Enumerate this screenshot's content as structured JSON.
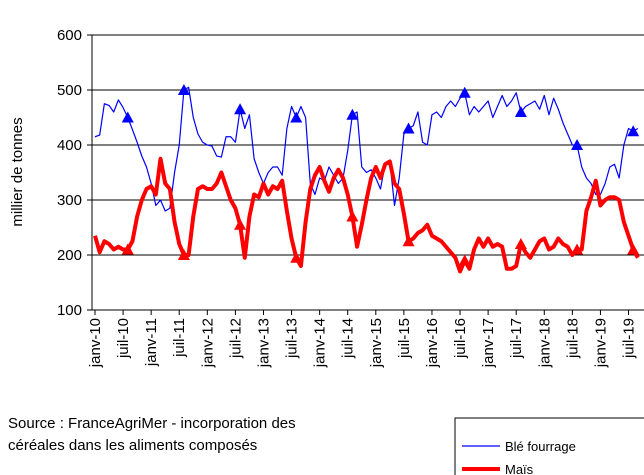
{
  "chart_data": {
    "type": "line",
    "y_label": "millier de tonnes",
    "source": [
      "Source : FranceAgriMer - incorporation des",
      "céréales dans les aliments  composés"
    ],
    "categories": [
      "janv-10",
      null,
      null,
      null,
      null,
      null,
      "juil-10",
      null,
      null,
      null,
      null,
      null,
      "janv-11",
      null,
      null,
      null,
      null,
      null,
      "juil-11",
      null,
      null,
      null,
      null,
      null,
      "janv-12",
      null,
      null,
      null,
      null,
      null,
      "juil-12",
      null,
      null,
      null,
      null,
      null,
      "janv-13",
      null,
      null,
      null,
      null,
      null,
      "juil-13",
      null,
      null,
      null,
      null,
      null,
      "janv-14",
      null,
      null,
      null,
      null,
      null,
      "juil-14",
      null,
      null,
      null,
      null,
      null,
      "janv-15",
      null,
      null,
      null,
      null,
      null,
      "juil-15",
      null,
      null,
      null,
      null,
      null,
      "janv-16",
      null,
      null,
      null,
      null,
      null,
      "juil-16",
      null,
      null,
      null,
      null,
      null,
      "janv-17",
      null,
      null,
      null,
      null,
      null,
      "juil-17",
      null,
      null,
      null,
      null,
      null,
      "janv-18",
      null,
      null,
      null,
      null,
      null,
      "juil-18",
      null,
      null,
      null,
      null,
      null,
      "janv-19",
      null,
      null,
      null,
      null,
      null,
      "juil-19",
      null,
      null
    ],
    "series": [
      {
        "name": "Blé fourrage",
        "color": "#0000ff",
        "width": 1.2,
        "values": [
          415,
          418,
          475,
          472,
          460,
          482,
          468,
          450,
          428,
          405,
          380,
          360,
          330,
          290,
          300,
          280,
          285,
          350,
          400,
          500,
          505,
          450,
          420,
          405,
          400,
          398,
          380,
          378,
          415,
          415,
          405,
          465,
          430,
          455,
          375,
          350,
          330,
          350,
          360,
          360,
          345,
          430,
          470,
          450,
          470,
          450,
          330,
          310,
          340,
          335,
          360,
          345,
          330,
          340,
          390,
          455,
          460,
          360,
          350,
          355,
          340,
          320,
          365,
          370,
          290,
          340,
          420,
          430,
          435,
          460,
          405,
          400,
          455,
          460,
          450,
          470,
          480,
          470,
          485,
          495,
          455,
          470,
          460,
          470,
          480,
          450,
          470,
          490,
          470,
          480,
          495,
          460,
          470,
          475,
          480,
          465,
          490,
          455,
          485,
          465,
          440,
          420,
          400,
          400,
          360,
          340,
          330,
          310,
          310,
          330,
          360,
          365,
          340,
          400,
          430,
          425,
          430
        ]
      },
      {
        "name": "Maïs",
        "color": "#ff0000",
        "width": 4,
        "values": [
          235,
          205,
          225,
          220,
          210,
          215,
          210,
          210,
          225,
          270,
          300,
          320,
          325,
          310,
          375,
          330,
          320,
          260,
          220,
          200,
          200,
          270,
          320,
          325,
          320,
          320,
          330,
          350,
          325,
          300,
          285,
          255,
          195,
          270,
          310,
          305,
          330,
          310,
          325,
          320,
          335,
          280,
          230,
          195,
          180,
          260,
          320,
          345,
          360,
          335,
          315,
          340,
          355,
          340,
          310,
          270,
          215,
          255,
          300,
          340,
          360,
          340,
          365,
          370,
          330,
          320,
          275,
          225,
          230,
          240,
          245,
          255,
          235,
          230,
          225,
          215,
          205,
          195,
          170,
          190,
          175,
          210,
          230,
          215,
          230,
          215,
          220,
          215,
          175,
          175,
          180,
          220,
          205,
          195,
          210,
          225,
          230,
          210,
          215,
          230,
          220,
          215,
          200,
          210,
          210,
          280,
          305,
          335,
          290,
          300,
          305,
          305,
          300,
          260,
          235,
          210,
          195
        ]
      }
    ],
    "ylim": [
      100,
      600
    ],
    "yticks": [
      100,
      200,
      300,
      400,
      500,
      600
    ],
    "grid": true
  }
}
